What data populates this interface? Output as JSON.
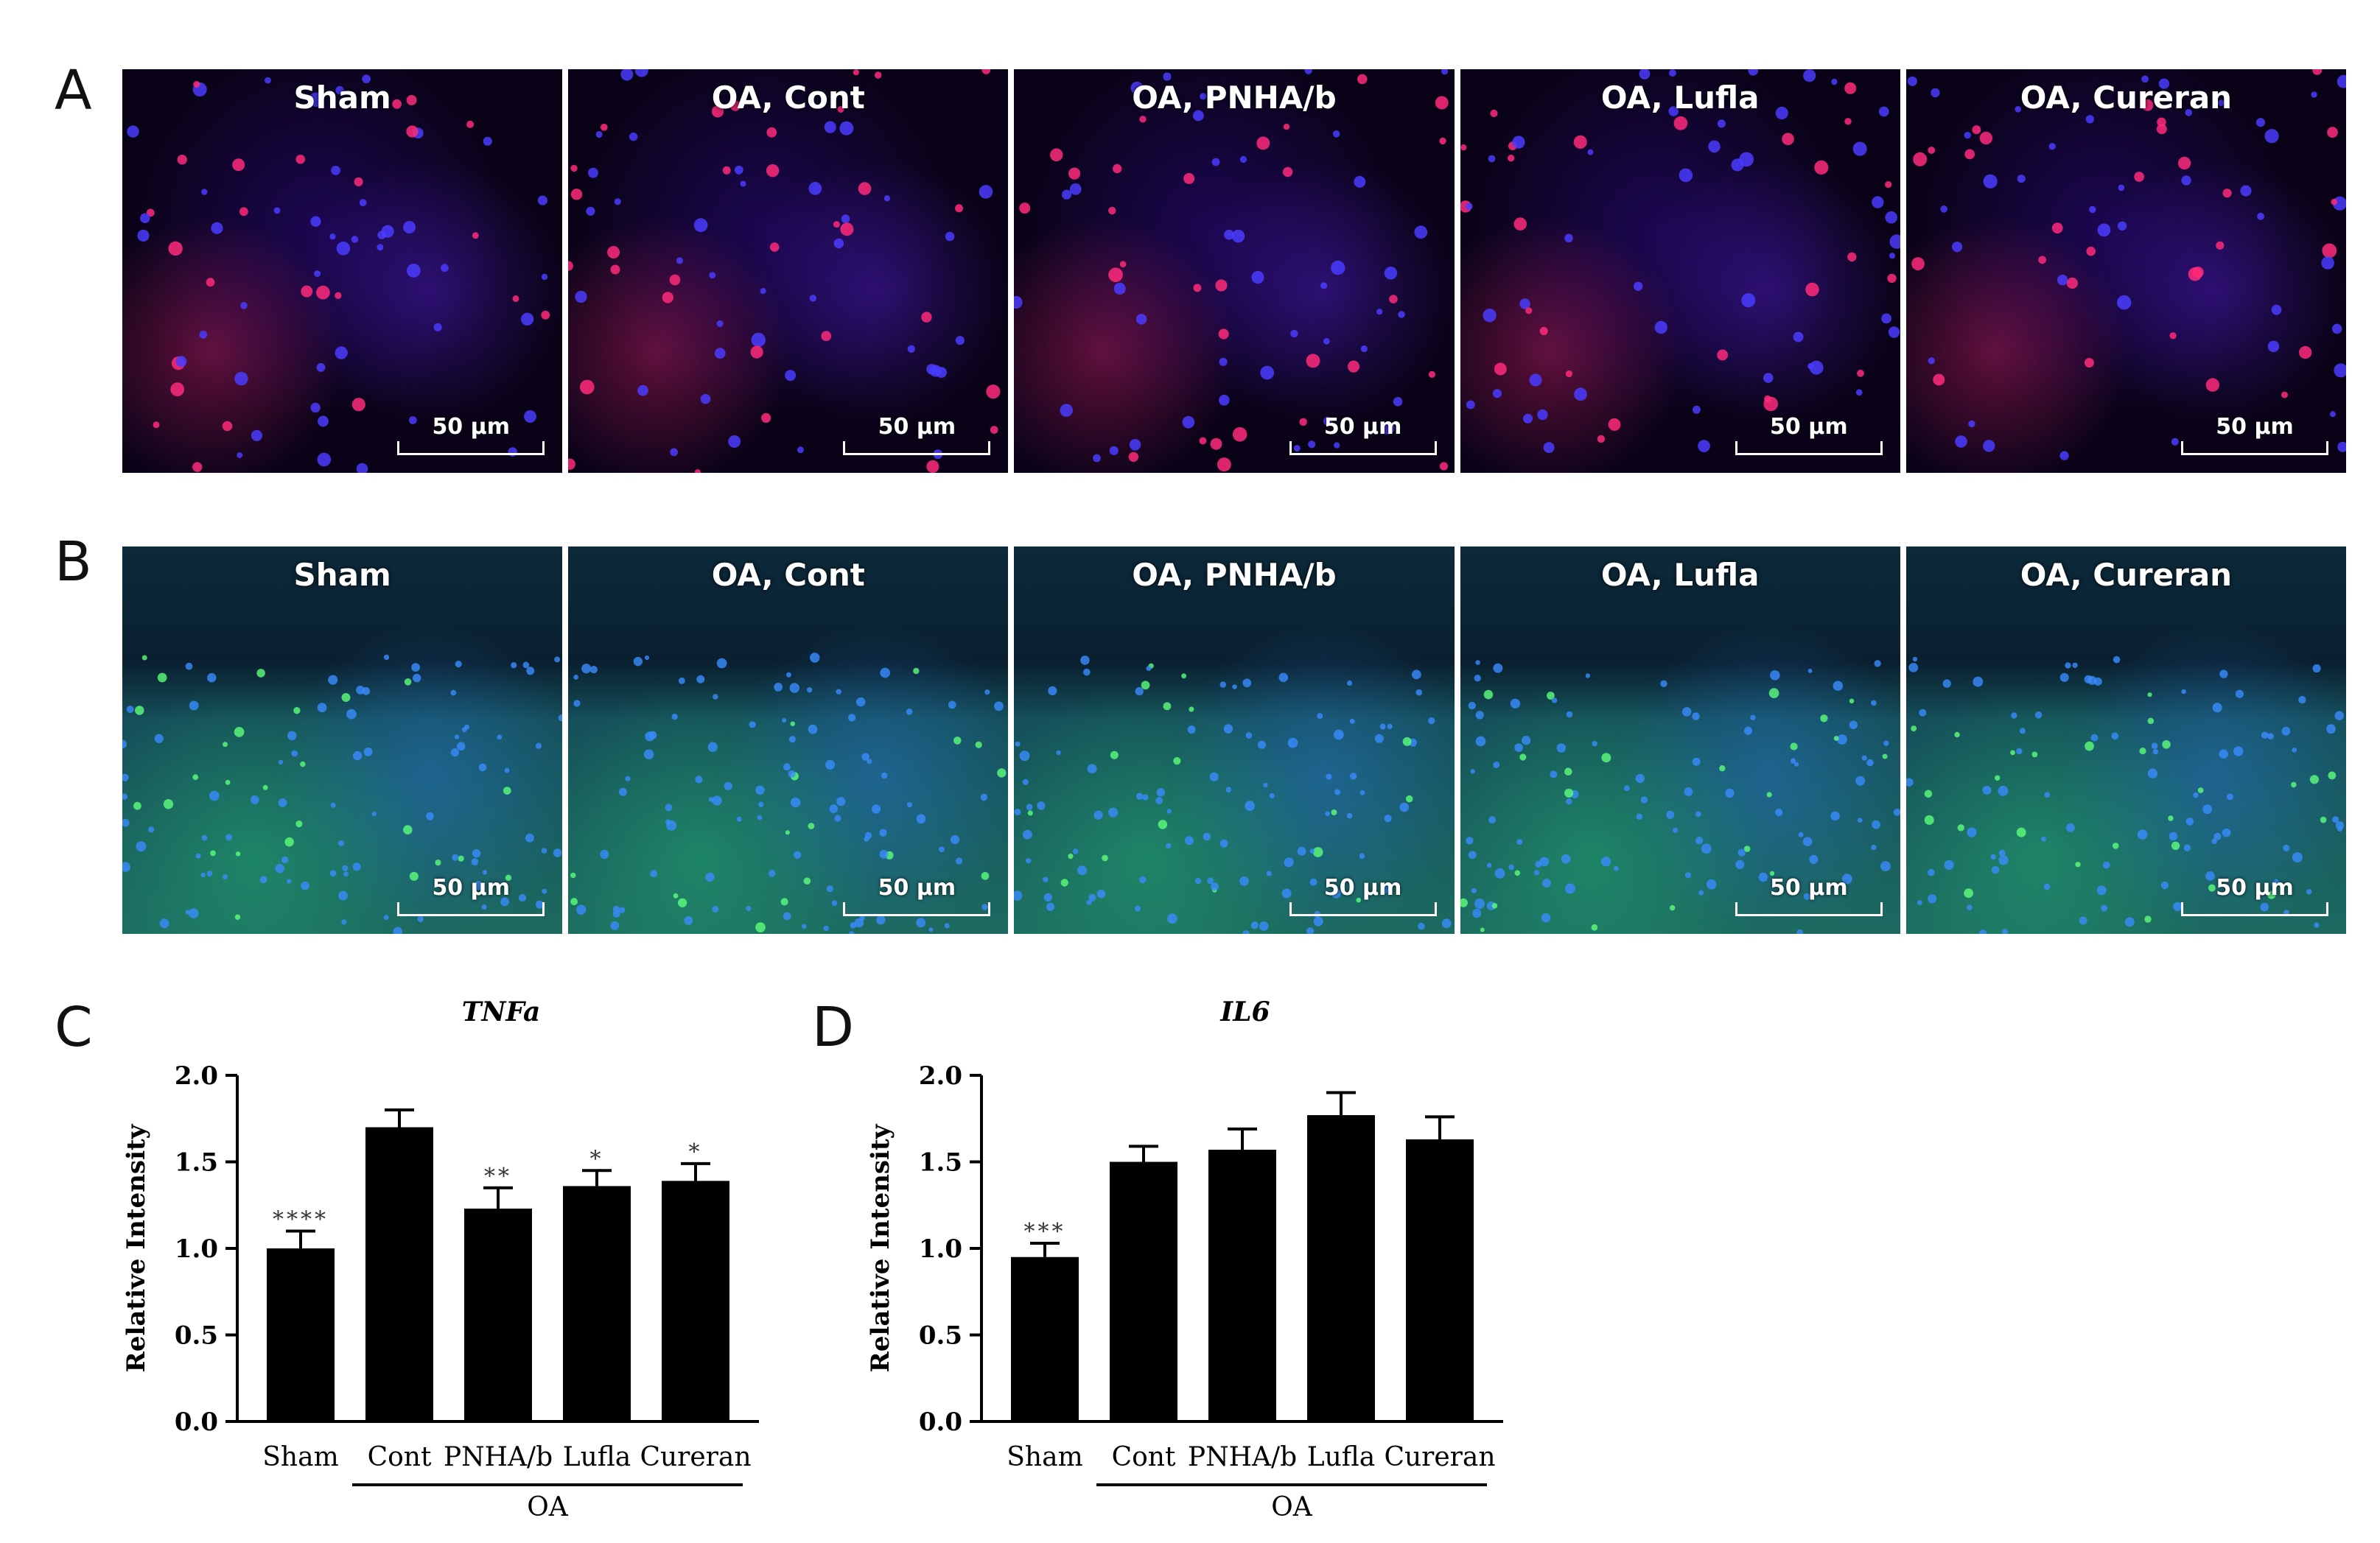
{
  "panel_letters": {
    "a": "A",
    "b": "B",
    "c": "C",
    "d": "D"
  },
  "microscopy_rows": {
    "row_a": {
      "stain": "red-blue fluorescence",
      "panels": [
        {
          "label": "Sham",
          "scale": "50 μm"
        },
        {
          "label": "OA, Cont",
          "scale": "50 μm"
        },
        {
          "label": "OA, PNHA/b",
          "scale": "50 μm"
        },
        {
          "label": "OA, Lufla",
          "scale": "50 μm"
        },
        {
          "label": "OA, Cureran",
          "scale": "50 μm"
        }
      ]
    },
    "row_b": {
      "stain": "green-blue fluorescence",
      "panels": [
        {
          "label": "Sham",
          "scale": "50 μm"
        },
        {
          "label": "OA, Cont",
          "scale": "50 μm"
        },
        {
          "label": "OA, PNHA/b",
          "scale": "50 μm"
        },
        {
          "label": "OA, Lufla",
          "scale": "50 μm"
        },
        {
          "label": "OA, Cureran",
          "scale": "50 μm"
        }
      ]
    }
  },
  "chart_data": [
    {
      "type": "bar",
      "title": "TNFa",
      "ylabel": "Relative Intensity",
      "xlabel": "",
      "ylim": [
        0,
        2.0
      ],
      "yticks": [
        "0.0",
        "0.5",
        "1.0",
        "1.5",
        "2.0"
      ],
      "categories": [
        "Sham",
        "Cont",
        "PNHA/b",
        "Lufla",
        "Cureran"
      ],
      "values": [
        1.0,
        1.7,
        1.23,
        1.36,
        1.39
      ],
      "errors": [
        0.1,
        0.1,
        0.12,
        0.09,
        0.1
      ],
      "significance": [
        "****",
        "",
        "**",
        "*",
        "*"
      ],
      "group_label": "OA",
      "bar_color": "#000000"
    },
    {
      "type": "bar",
      "title": "IL6",
      "ylabel": "Relative Intensity",
      "xlabel": "",
      "ylim": [
        0,
        2.0
      ],
      "yticks": [
        "0.0",
        "0.5",
        "1.0",
        "1.5",
        "2.0"
      ],
      "categories": [
        "Sham",
        "Cont",
        "PNHA/b",
        "Lufla",
        "Cureran"
      ],
      "values": [
        0.95,
        1.5,
        1.57,
        1.77,
        1.63
      ],
      "errors": [
        0.08,
        0.09,
        0.12,
        0.13,
        0.13
      ],
      "significance": [
        "***",
        "",
        "",
        "",
        ""
      ],
      "group_label": "OA",
      "bar_color": "#000000"
    }
  ]
}
